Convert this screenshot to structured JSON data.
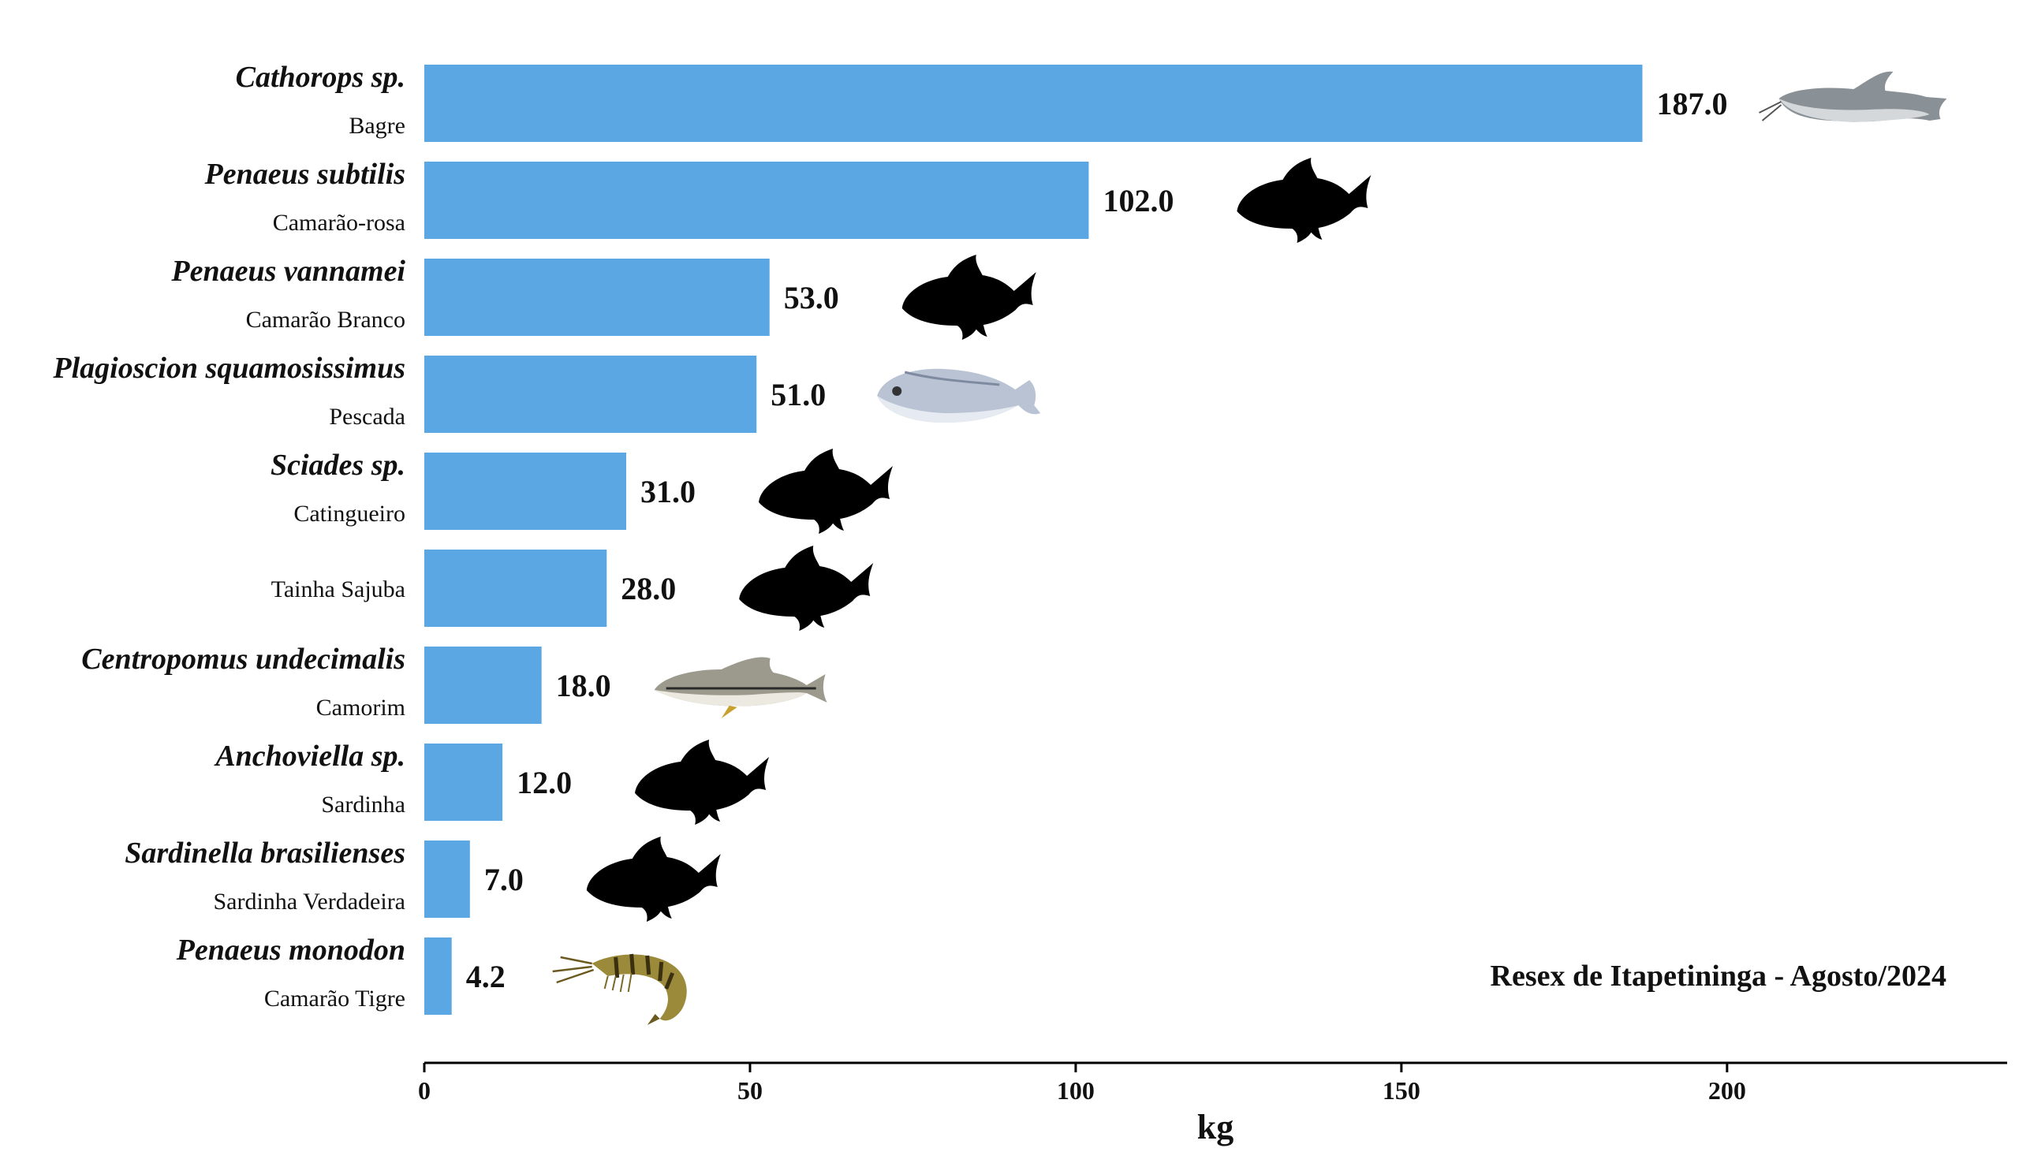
{
  "chart_data": {
    "type": "bar",
    "orientation": "horizontal",
    "categories": [
      {
        "scientific": "Cathorops sp.",
        "common": "Bagre",
        "icon": "catfish-photo-icon"
      },
      {
        "scientific": "Penaeus subtilis",
        "common": "Camarão-rosa",
        "icon": "fish-silhouette-icon"
      },
      {
        "scientific": "Penaeus vannamei",
        "common": "Camarão Branco",
        "icon": "fish-silhouette-icon"
      },
      {
        "scientific": "Plagioscion squamosissimus",
        "common": "Pescada",
        "icon": "croaker-photo-icon"
      },
      {
        "scientific": "Sciades sp.",
        "common": "Catingueiro",
        "icon": "fish-silhouette-icon"
      },
      {
        "scientific": "",
        "common": "Tainha Sajuba",
        "icon": "fish-silhouette-icon"
      },
      {
        "scientific": "Centropomus undecimalis",
        "common": "Camorim",
        "icon": "snook-photo-icon"
      },
      {
        "scientific": "Anchoviella sp.",
        "common": "Sardinha",
        "icon": "fish-silhouette-icon"
      },
      {
        "scientific": "Sardinella brasilienses",
        "common": "Sardinha Verdadeira",
        "icon": "fish-silhouette-icon"
      },
      {
        "scientific": "Penaeus monodon",
        "common": "Camarão Tigre",
        "icon": "shrimp-photo-icon"
      }
    ],
    "values": [
      187.0,
      102.0,
      53.0,
      51.0,
      31.0,
      28.0,
      18.0,
      12.0,
      7.0,
      4.2
    ],
    "value_labels": [
      "187.0",
      "102.0",
      "53.0",
      "51.0",
      "31.0",
      "28.0",
      "18.0",
      "12.0",
      "7.0",
      "4.2"
    ],
    "xlabel": "kg",
    "xlim": [
      0,
      243
    ],
    "xticks": [
      0,
      50,
      100,
      150,
      200
    ],
    "annotation": "Resex de Itapetininga - Agosto/2024",
    "bar_color": "#5aa7e3",
    "grid": false
  }
}
